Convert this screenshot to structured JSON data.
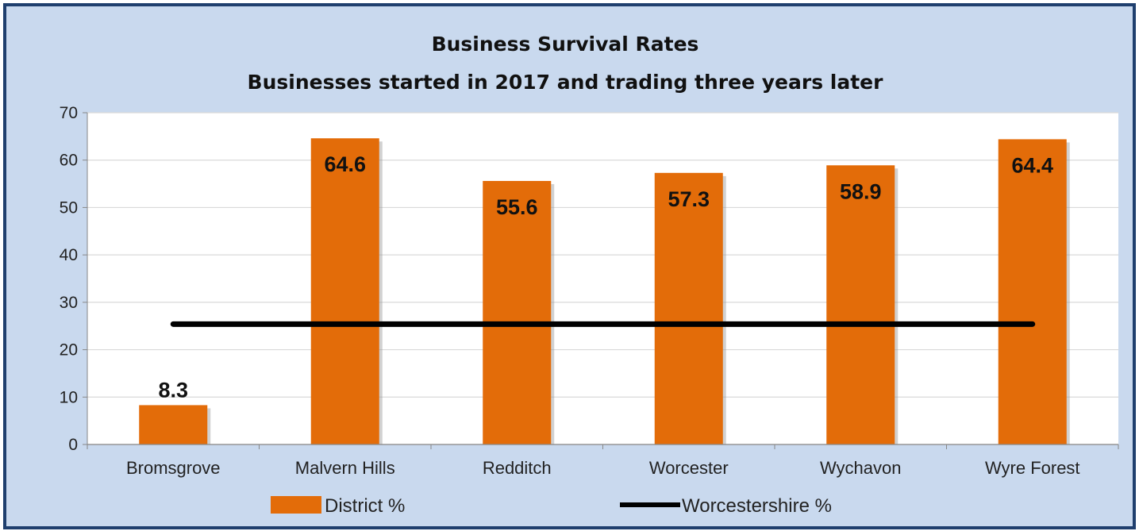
{
  "chart_data": {
    "type": "bar",
    "title": "Business Survival Rates",
    "subtitle": "Businesses started in 2017 and trading three years later",
    "categories": [
      "Bromsgrove",
      "Malvern Hills",
      "Redditch",
      "Worcester",
      "Wychavon",
      "Wyre Forest"
    ],
    "series": [
      {
        "name": "District %",
        "type": "bar",
        "color": "#e36c09",
        "values": [
          8.3,
          64.6,
          55.6,
          57.3,
          58.9,
          64.4
        ]
      },
      {
        "name": "Worcestershire %",
        "type": "line",
        "color": "#000000",
        "values": [
          25.4,
          25.4,
          25.4,
          25.4,
          25.4,
          25.4
        ]
      }
    ],
    "data_labels": [
      "8.3",
      "64.6",
      "55.6",
      "57.3",
      "58.9",
      "64.4"
    ],
    "ylim": [
      0,
      70
    ],
    "yticks": [
      "0",
      "10",
      "20",
      "30",
      "40",
      "50",
      "60",
      "70"
    ],
    "grid": true,
    "legend": "bottom",
    "xlabel": "",
    "ylabel": ""
  }
}
